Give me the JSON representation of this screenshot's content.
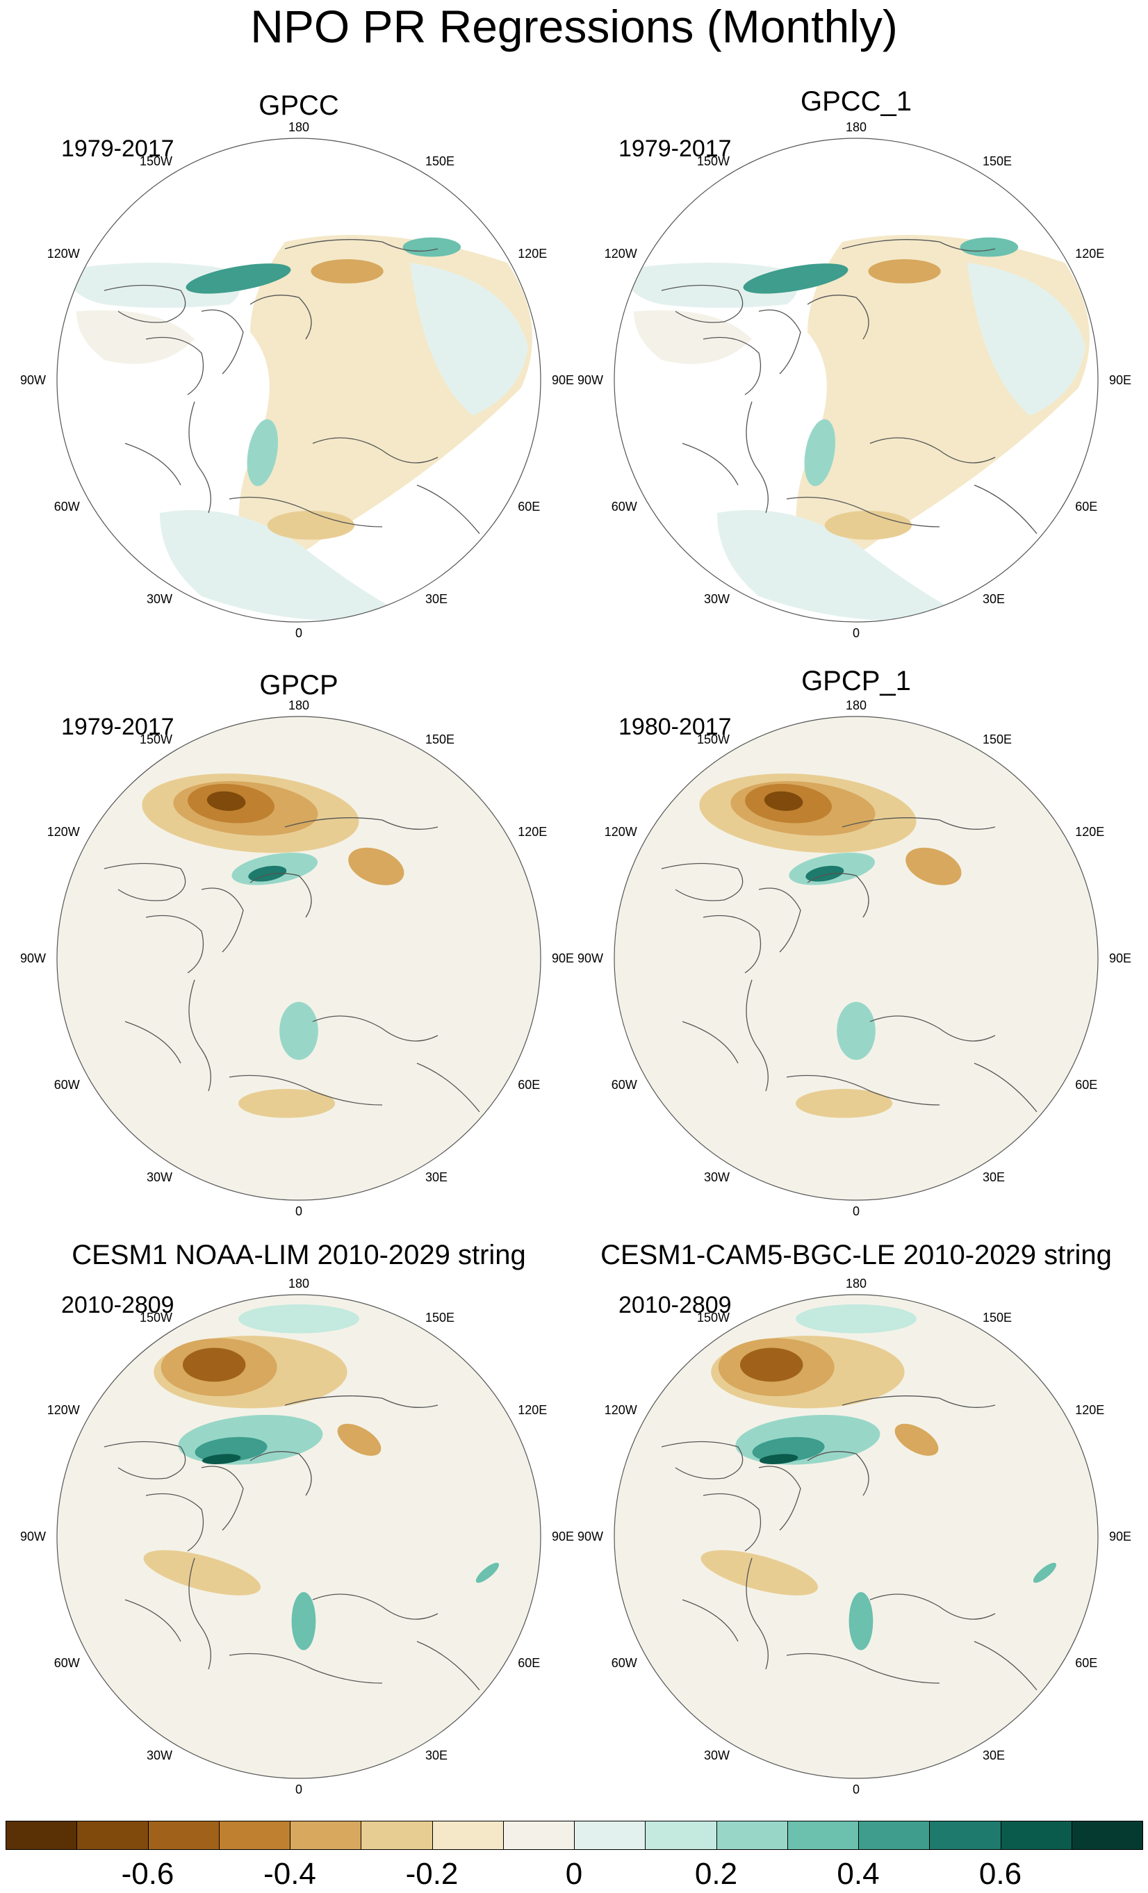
{
  "title": "NPO PR Regressions (Monthly)",
  "panels": [
    {
      "title": "GPCC",
      "period": "1979-2017",
      "style": "gpcc"
    },
    {
      "title": "GPCC_1",
      "period": "1979-2017",
      "style": "gpcc"
    },
    {
      "title": "GPCP",
      "period": "1979-2017",
      "style": "gpcp"
    },
    {
      "title": "GPCP_1",
      "period": "1980-2017",
      "style": "gpcp"
    },
    {
      "title": "CESM1 NOAA-LIM 2010-2029 string",
      "period": "2010-2809",
      "style": "cesm"
    },
    {
      "title": "CESM1-CAM5-BGC-LE 2010-2029 string",
      "period": "2010-2809",
      "style": "cesm"
    }
  ],
  "longitude_labels": [
    "180",
    "150E",
    "120E",
    "90E",
    "60E",
    "30E",
    "0",
    "30W",
    "60W",
    "90W",
    "120W",
    "150W"
  ],
  "colorbar": {
    "colors": [
      "#5a3005",
      "#7f4a0c",
      "#a0621a",
      "#bf8030",
      "#d7a85e",
      "#e8cd93",
      "#f4e8c8",
      "#f4f2e8",
      "#e3f1ee",
      "#c4e9df",
      "#98d7c8",
      "#6bc0ae",
      "#3e9d8c",
      "#1d7a6c",
      "#0b5b4d",
      "#053a31"
    ],
    "tick_labels": [
      "-0.6",
      "-0.4",
      "-0.2",
      "0",
      "0.2",
      "0.4",
      "0.6"
    ]
  }
}
